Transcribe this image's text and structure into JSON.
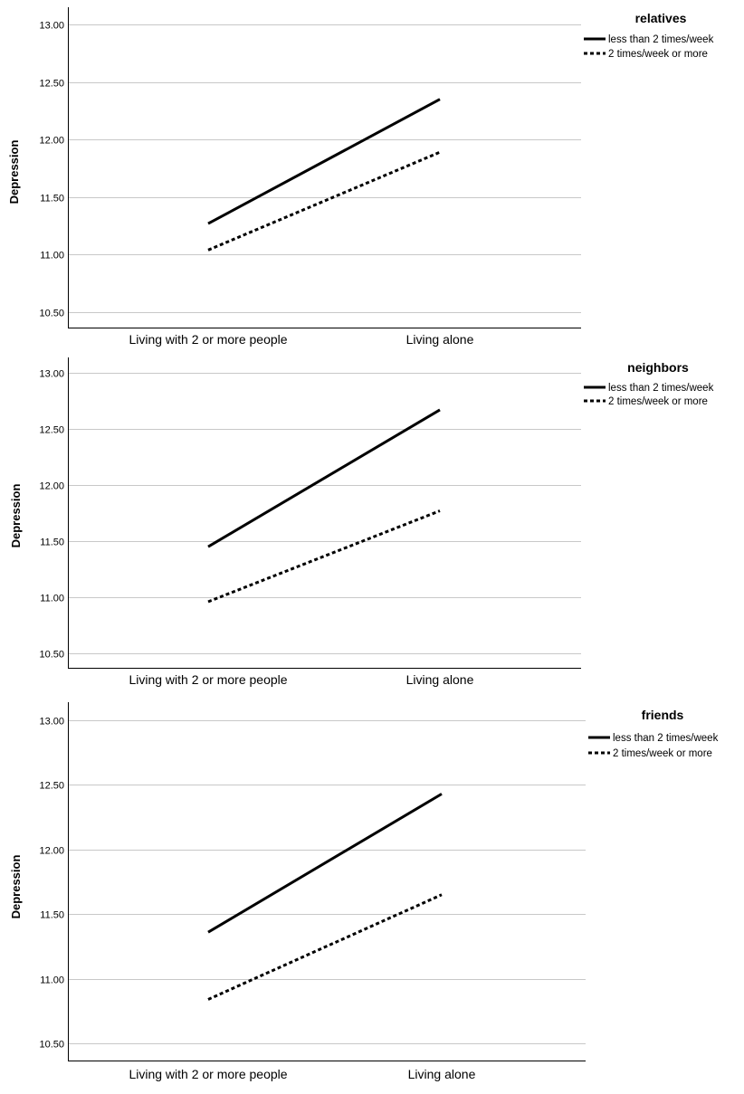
{
  "chart_data": [
    {
      "type": "line",
      "categories": [
        "Living with 2 or more people",
        "Living alone"
      ],
      "ylabel": "Depression",
      "ylim": [
        10.5,
        13.0
      ],
      "yticks": [
        "10.50",
        "11.00",
        "11.50",
        "12.00",
        "12.50",
        "13.00"
      ],
      "grid": true,
      "legend_title": "relatives",
      "legend_position": "top-right",
      "series": [
        {
          "name": "less than 2 times/week",
          "style": "solid",
          "values": [
            11.27,
            12.35
          ]
        },
        {
          "name": "2 times/week or more",
          "style": "dotted",
          "values": [
            11.04,
            11.89
          ]
        }
      ]
    },
    {
      "type": "line",
      "categories": [
        "Living with 2 or more people",
        "Living alone"
      ],
      "ylabel": "Depression",
      "ylim": [
        10.5,
        13.0
      ],
      "yticks": [
        "10.50",
        "11.00",
        "11.50",
        "12.00",
        "12.50",
        "13.00"
      ],
      "grid": true,
      "legend_title": "neighbors",
      "legend_position": "top-right",
      "series": [
        {
          "name": "less than 2 times/week",
          "style": "solid",
          "values": [
            11.45,
            12.67
          ]
        },
        {
          "name": "2 times/week or more",
          "style": "dotted",
          "values": [
            10.96,
            11.77
          ]
        }
      ]
    },
    {
      "type": "line",
      "categories": [
        "Living with 2 or more people",
        "Living alone"
      ],
      "ylabel": "Depression",
      "ylim": [
        10.5,
        13.0
      ],
      "yticks": [
        "10.50",
        "11.00",
        "11.50",
        "12.00",
        "12.50",
        "13.00"
      ],
      "grid": true,
      "legend_title": "friends",
      "legend_position": "top-right",
      "series": [
        {
          "name": "less than 2 times/week",
          "style": "solid",
          "values": [
            11.36,
            12.43
          ]
        },
        {
          "name": "2 times/week or more",
          "style": "dotted",
          "values": [
            10.84,
            11.65
          ]
        }
      ]
    }
  ],
  "colors": {
    "line": "#000000",
    "grid": "#c8c8c8",
    "axis": "#000000"
  }
}
